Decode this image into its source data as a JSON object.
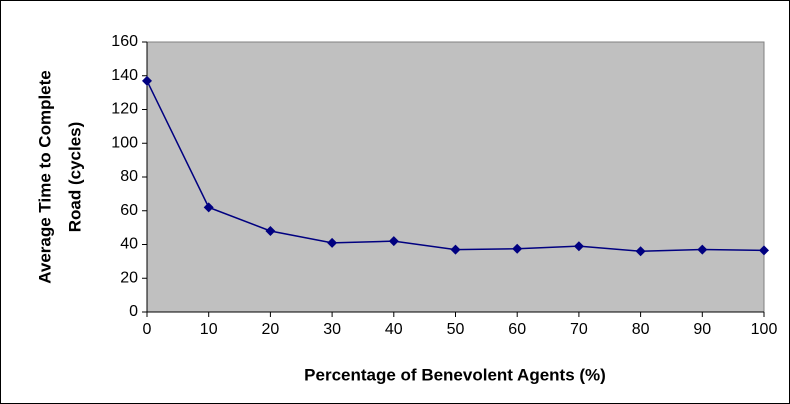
{
  "chart_data": {
    "type": "line",
    "xlabel": "Percentage of Benevolent Agents (%)",
    "ylabel": [
      "Average Time to Complete",
      "Road (cycles)"
    ],
    "x": [
      0,
      10,
      20,
      30,
      40,
      50,
      60,
      70,
      80,
      90,
      100
    ],
    "series": [
      {
        "color": "#000080",
        "values": [
          137,
          62,
          48,
          41,
          42,
          37,
          37.5,
          39,
          36,
          37,
          36.5
        ]
      }
    ],
    "xlim": [
      0,
      100
    ],
    "xticks": [
      0,
      10,
      20,
      30,
      40,
      50,
      60,
      70,
      80,
      90,
      100
    ],
    "ylim": [
      0,
      160
    ],
    "yticks": [
      0,
      20,
      40,
      60,
      80,
      100,
      120,
      140,
      160
    ],
    "grid": false,
    "plot_background": "#c0c0c0"
  }
}
